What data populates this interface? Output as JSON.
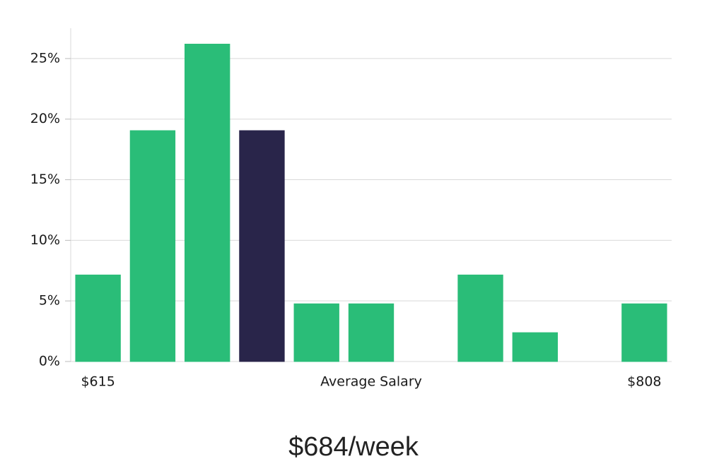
{
  "chart_data": {
    "type": "bar",
    "categories": [
      "$615",
      null,
      null,
      null,
      null,
      null,
      null,
      null,
      null,
      null,
      "$808"
    ],
    "values": [
      7.14,
      19.05,
      26.19,
      19.05,
      4.76,
      4.76,
      0,
      7.14,
      2.38,
      0,
      4.76
    ],
    "colors": [
      "#2abd78",
      "#2abd78",
      "#2abd78",
      "#29254a",
      "#2abd78",
      "#2abd78",
      "#2abd78",
      "#2abd78",
      "#2abd78",
      "#2abd78",
      "#2abd78"
    ],
    "x_label": "Average Salary",
    "footer": "$684/week",
    "ylim": [
      0,
      27.5
    ],
    "yticks": [
      {
        "value": 0,
        "label": "0%"
      },
      {
        "value": 5,
        "label": "5%"
      },
      {
        "value": 10,
        "label": "10%"
      },
      {
        "value": 15,
        "label": "15%"
      },
      {
        "value": 20,
        "label": "20%"
      },
      {
        "value": 25,
        "label": "25%"
      }
    ],
    "grid": true
  }
}
